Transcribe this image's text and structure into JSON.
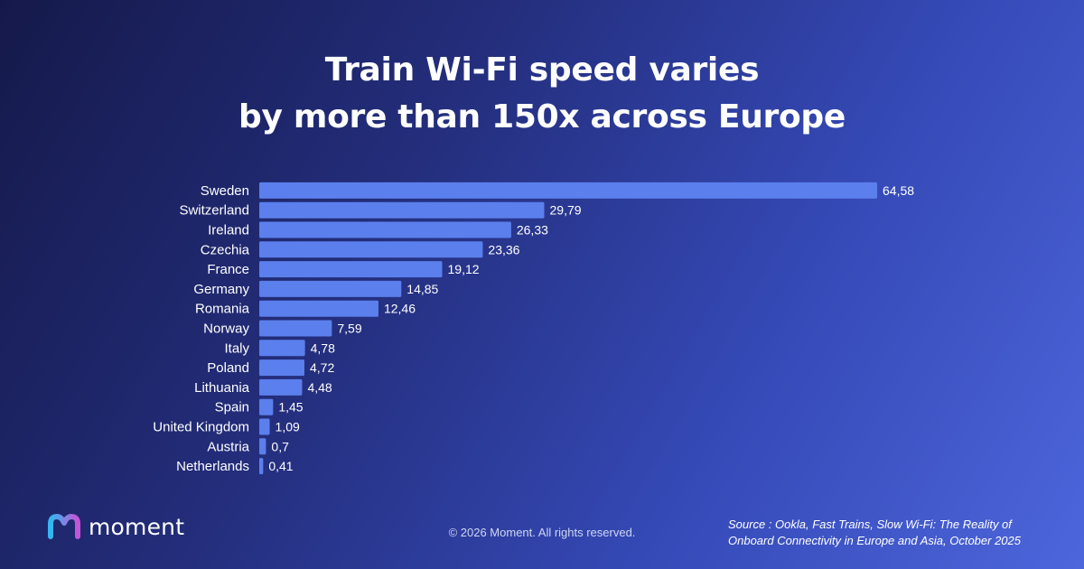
{
  "title": {
    "line1": "Train Wi-Fi speed varies",
    "line2": "by more than 150x across Europe"
  },
  "colors": {
    "bar": "#5b7fec",
    "accent_logo_start": "#33b8f0",
    "accent_logo_end": "#c454d8"
  },
  "chart_data": {
    "type": "bar",
    "orientation": "horizontal",
    "categories": [
      "Sweden",
      "Switzerland",
      "Ireland",
      "Czechia",
      "France",
      "Germany",
      "Romania",
      "Norway",
      "Italy",
      "Poland",
      "Lithuania",
      "Spain",
      "United Kingdom",
      "Austria",
      "Netherlands"
    ],
    "values": [
      64.58,
      29.79,
      26.33,
      23.36,
      19.12,
      14.85,
      12.46,
      7.59,
      4.78,
      4.72,
      4.48,
      1.45,
      1.09,
      0.7,
      0.41
    ],
    "value_labels": [
      "64,58",
      "29,79",
      "26,33",
      "23,36",
      "19,12",
      "14,85",
      "12,46",
      "7,59",
      "4,78",
      "4,72",
      "4,48",
      "1,45",
      "1,09",
      "0,7",
      "0,41"
    ],
    "title": "Train Wi-Fi speed varies by more than 150x across Europe",
    "xlabel": "",
    "ylabel": "",
    "xlim": [
      0,
      64.58
    ],
    "grid": false,
    "legend": "none"
  },
  "footer": {
    "logo_text": "moment",
    "logo_icon": "moment-logo-icon",
    "copyright": "© 2026 Moment. All rights reserved.",
    "source_line1": "Source : Ookla, Fast Trains, Slow Wi-Fi: The Reality of",
    "source_line2": "Onboard Connectivity in Europe and Asia, October 2025"
  }
}
